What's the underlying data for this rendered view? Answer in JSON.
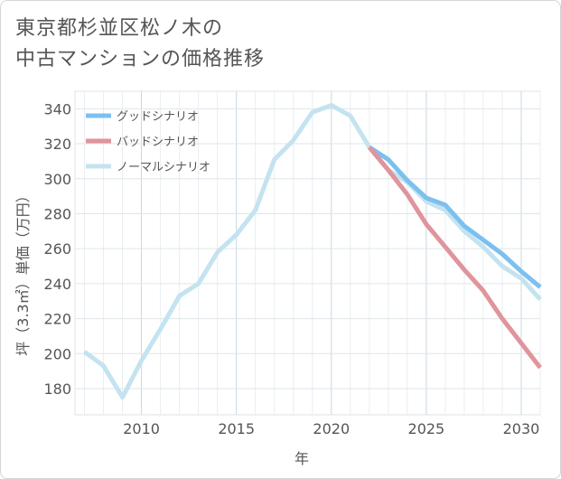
{
  "title_lines": [
    "東京都杉並区松ノ木の",
    "中古マンションの価格推移"
  ],
  "chart_data": {
    "type": "line",
    "title": "東京都杉並区松ノ木の中古マンションの価格推移",
    "xlabel": "年",
    "ylabel": "坪（3.3㎡）単価（万円）",
    "xlim": [
      2006.5,
      2031
    ],
    "ylim": [
      165,
      350
    ],
    "xticks": [
      2010,
      2015,
      2020,
      2025,
      2030
    ],
    "yticks": [
      180,
      200,
      220,
      240,
      260,
      280,
      300,
      320,
      340
    ],
    "grid": true,
    "legend_position": "top-left",
    "series": [
      {
        "name": "グッドシナリオ",
        "color": "#7cc0ef",
        "x": [
          2022,
          2023,
          2024,
          2025,
          2026,
          2027,
          2028,
          2029,
          2030,
          2031
        ],
        "values": [
          318,
          311,
          299,
          289,
          285,
          273,
          265,
          257,
          247,
          238
        ]
      },
      {
        "name": "バッドシナリオ",
        "color": "#e0949c",
        "x": [
          2022,
          2023,
          2024,
          2025,
          2026,
          2027,
          2028,
          2029,
          2030,
          2031
        ],
        "values": [
          318,
          305,
          291,
          274,
          261,
          248,
          236,
          220,
          206,
          192
        ]
      },
      {
        "name": "ノーマルシナリオ",
        "color": "#c4e3f0",
        "x": [
          2007,
          2008,
          2009,
          2010,
          2011,
          2012,
          2013,
          2014,
          2015,
          2016,
          2017,
          2018,
          2019,
          2020,
          2021,
          2022,
          2023,
          2024,
          2025,
          2026,
          2027,
          2028,
          2029,
          2030,
          2031
        ],
        "values": [
          201,
          193,
          175,
          196,
          214,
          233,
          240,
          258,
          268,
          282,
          311,
          322,
          338,
          342,
          336,
          318,
          305,
          298,
          287,
          282,
          270,
          261,
          250,
          243,
          231
        ]
      }
    ]
  }
}
